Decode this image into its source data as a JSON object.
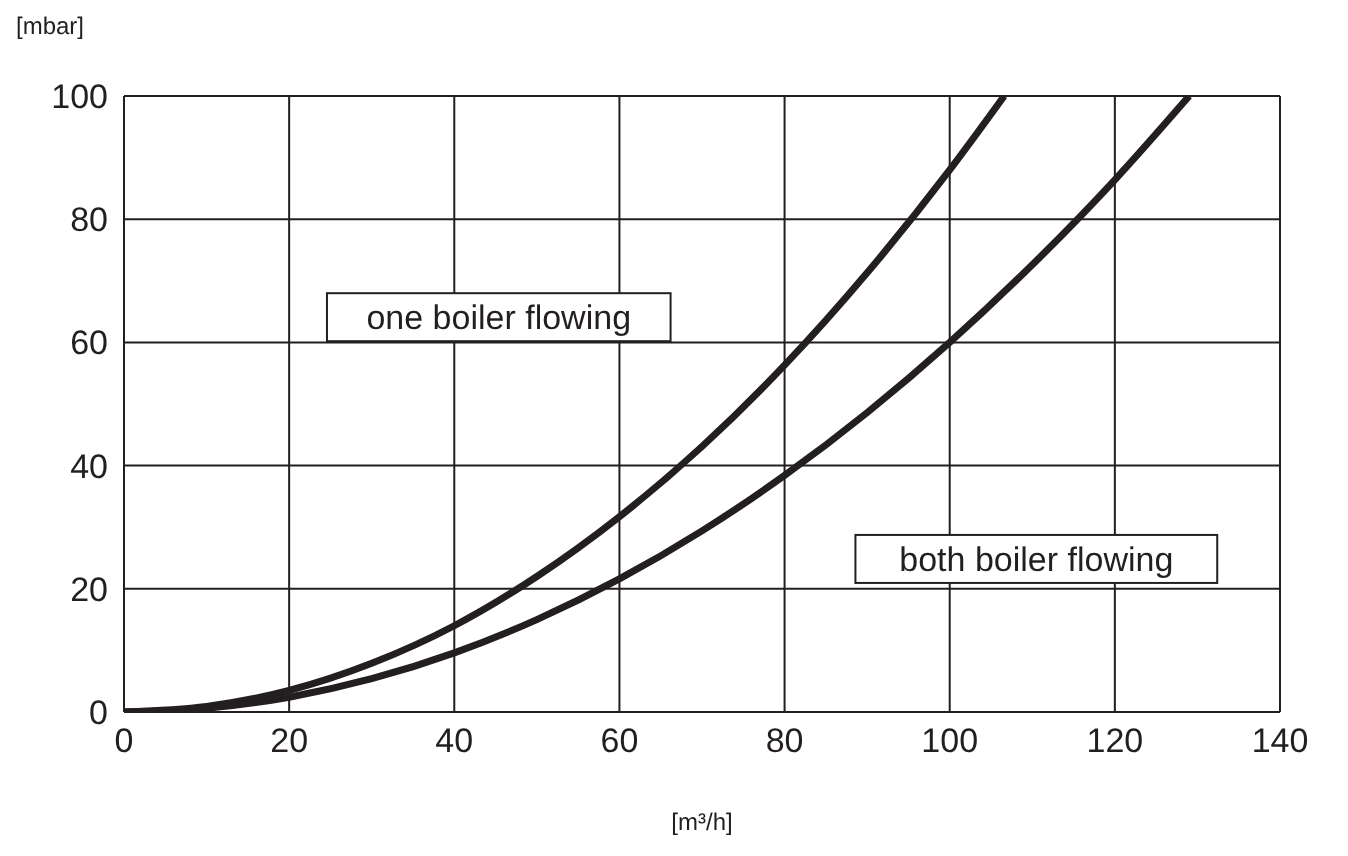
{
  "chart_data": {
    "type": "line",
    "xlabel": "[m³/h]",
    "ylabel": "[mbar]",
    "series": [
      {
        "name": "one boiler flowing",
        "color": "#231f20",
        "x": [
          0,
          10,
          20,
          30,
          40,
          50,
          60,
          70,
          80,
          90,
          100,
          106.6
        ],
        "values": [
          0,
          0.9,
          3.5,
          7.9,
          14,
          22,
          31.7,
          43.1,
          56.3,
          71.3,
          88,
          100
        ]
      },
      {
        "name": "both boiler flowing",
        "color": "#231f20",
        "x": [
          0,
          10,
          20,
          30,
          40,
          50,
          60,
          70,
          80,
          90,
          100,
          110,
          120,
          129
        ],
        "values": [
          0,
          0.6,
          2.4,
          5.4,
          9.6,
          15,
          21.6,
          29.4,
          38.4,
          48.6,
          60,
          72.6,
          86.4,
          100
        ]
      }
    ],
    "xlim": [
      0,
      140
    ],
    "xticks": [
      0,
      20,
      40,
      60,
      80,
      100,
      120,
      140
    ],
    "ylim": [
      0,
      100
    ],
    "yticks": [
      0,
      20,
      40,
      60,
      80,
      100
    ],
    "grid": true,
    "marker": "none",
    "line_style": "solid"
  }
}
